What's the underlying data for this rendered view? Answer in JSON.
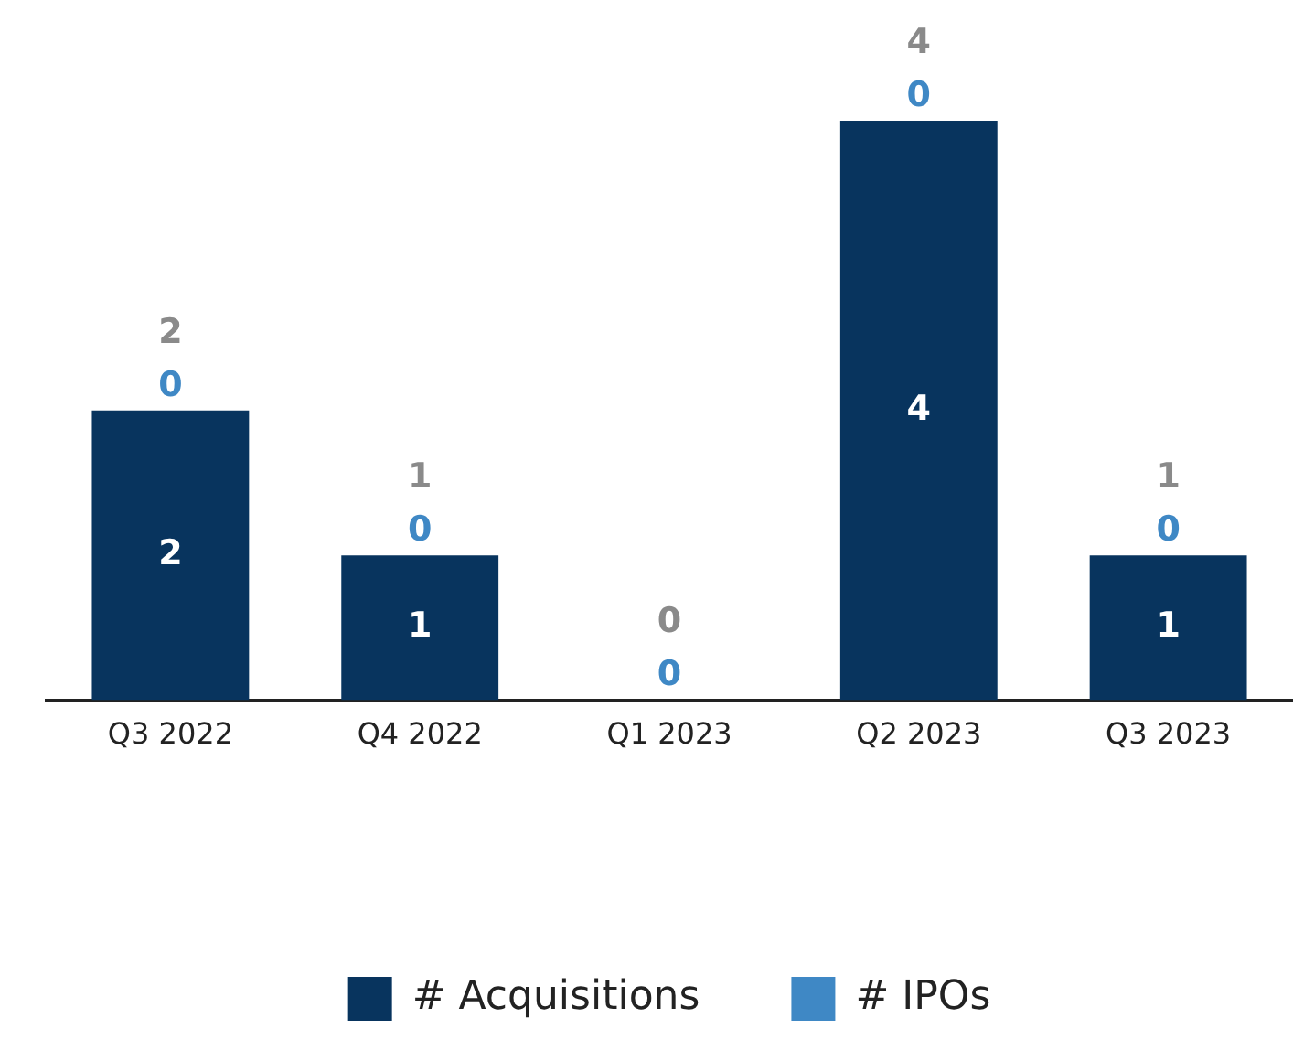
{
  "chart_data": {
    "type": "bar",
    "stacked": true,
    "categories": [
      "Q3 2022",
      "Q4 2022",
      "Q1 2023",
      "Q2 2023",
      "Q3 2023"
    ],
    "series": [
      {
        "name": "# Acquisitions",
        "color": "#08345e",
        "values": [
          2,
          1,
          0,
          4,
          1
        ],
        "value_labels": [
          "2",
          "1",
          null,
          "4",
          "1"
        ]
      },
      {
        "name": "# IPOs",
        "color": "#3f88c5",
        "values": [
          0,
          0,
          0,
          0,
          0
        ],
        "value_labels": [
          "0",
          "0",
          "0",
          "0",
          "0"
        ]
      }
    ],
    "totals": [
      "2",
      "1",
      "0",
      "4",
      "1"
    ],
    "grid": false,
    "legend": "bottom"
  }
}
